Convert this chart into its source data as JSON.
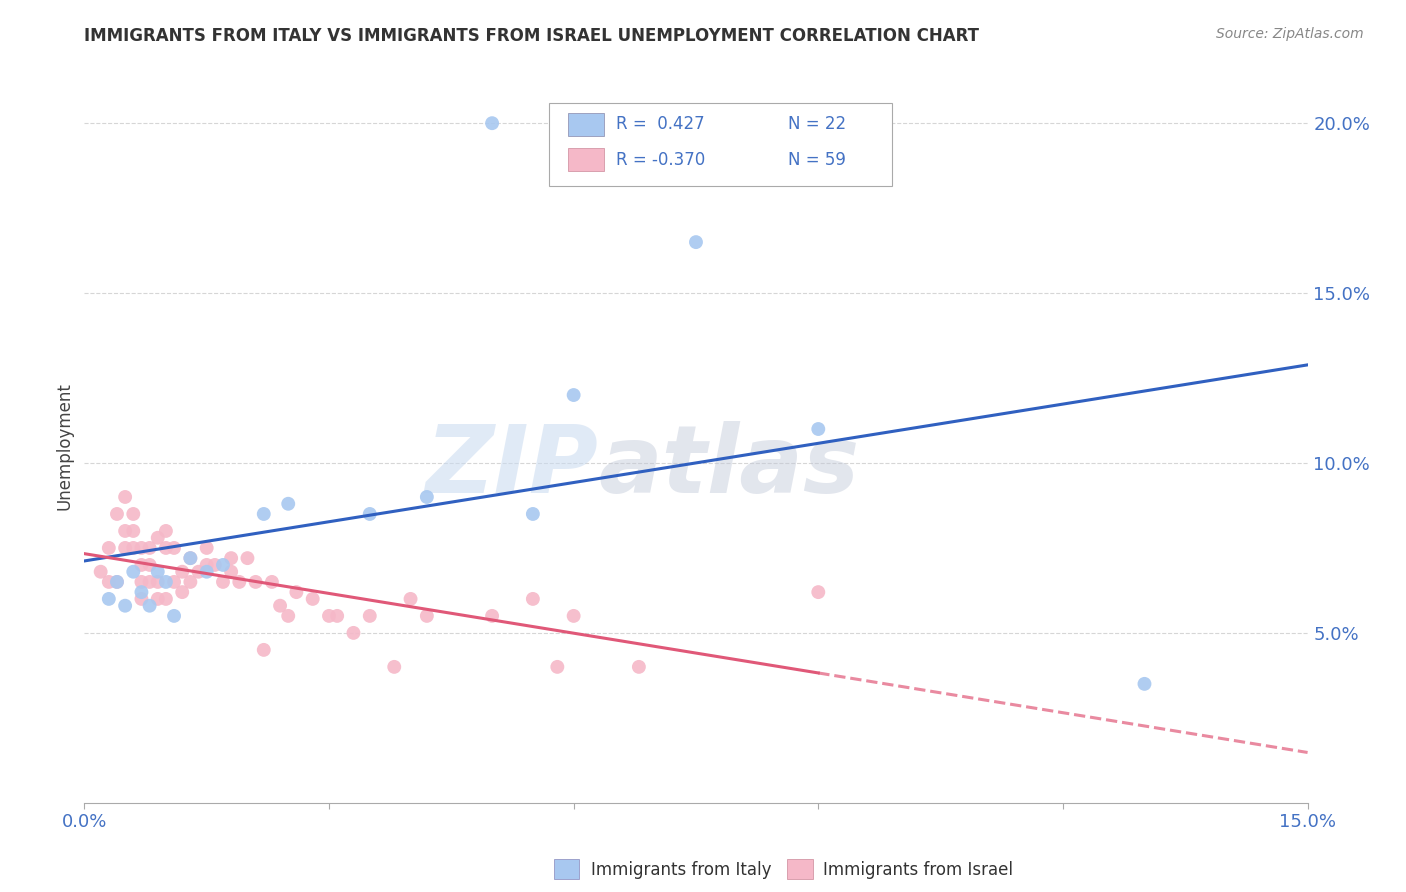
{
  "title": "IMMIGRANTS FROM ITALY VS IMMIGRANTS FROM ISRAEL UNEMPLOYMENT CORRELATION CHART",
  "source": "Source: ZipAtlas.com",
  "ylabel": "Unemployment",
  "x_min": 0.0,
  "x_max": 0.15,
  "y_min": 0.0,
  "y_max": 0.21,
  "yticks": [
    0.05,
    0.1,
    0.15,
    0.2
  ],
  "ytick_labels": [
    "5.0%",
    "10.0%",
    "15.0%",
    "20.0%"
  ],
  "xticks": [
    0.0,
    0.03,
    0.06,
    0.09,
    0.12,
    0.15
  ],
  "xtick_labels": [
    "0.0%",
    "",
    "",
    "",
    "",
    "15.0%"
  ],
  "legend_italy_r": "R =  0.427",
  "legend_italy_n": "N = 22",
  "legend_israel_r": "R = -0.370",
  "legend_israel_n": "N = 59",
  "italy_color": "#a8c8f0",
  "israel_color": "#f5b8c8",
  "italy_line_color": "#3060c0",
  "israel_line_color": "#e05878",
  "italy_x": [
    0.003,
    0.004,
    0.005,
    0.006,
    0.007,
    0.008,
    0.009,
    0.01,
    0.011,
    0.013,
    0.015,
    0.017,
    0.022,
    0.025,
    0.035,
    0.042,
    0.05,
    0.055,
    0.06,
    0.075,
    0.09,
    0.13
  ],
  "italy_y": [
    0.06,
    0.065,
    0.058,
    0.068,
    0.062,
    0.058,
    0.068,
    0.065,
    0.055,
    0.072,
    0.068,
    0.07,
    0.085,
    0.088,
    0.085,
    0.09,
    0.2,
    0.085,
    0.12,
    0.165,
    0.11,
    0.035
  ],
  "israel_x": [
    0.002,
    0.003,
    0.003,
    0.004,
    0.004,
    0.005,
    0.005,
    0.005,
    0.006,
    0.006,
    0.006,
    0.007,
    0.007,
    0.007,
    0.007,
    0.008,
    0.008,
    0.008,
    0.009,
    0.009,
    0.009,
    0.01,
    0.01,
    0.01,
    0.011,
    0.011,
    0.012,
    0.012,
    0.013,
    0.013,
    0.014,
    0.015,
    0.015,
    0.016,
    0.017,
    0.018,
    0.018,
    0.019,
    0.02,
    0.021,
    0.022,
    0.023,
    0.024,
    0.025,
    0.026,
    0.028,
    0.03,
    0.031,
    0.033,
    0.035,
    0.038,
    0.04,
    0.042,
    0.05,
    0.055,
    0.058,
    0.06,
    0.068,
    0.09
  ],
  "israel_y": [
    0.068,
    0.065,
    0.075,
    0.065,
    0.085,
    0.09,
    0.08,
    0.075,
    0.085,
    0.08,
    0.075,
    0.075,
    0.07,
    0.065,
    0.06,
    0.075,
    0.07,
    0.065,
    0.078,
    0.065,
    0.06,
    0.08,
    0.075,
    0.06,
    0.075,
    0.065,
    0.068,
    0.062,
    0.072,
    0.065,
    0.068,
    0.075,
    0.07,
    0.07,
    0.065,
    0.072,
    0.068,
    0.065,
    0.072,
    0.065,
    0.045,
    0.065,
    0.058,
    0.055,
    0.062,
    0.06,
    0.055,
    0.055,
    0.05,
    0.055,
    0.04,
    0.06,
    0.055,
    0.055,
    0.06,
    0.04,
    0.055,
    0.04,
    0.062
  ],
  "watermark_zip": "ZIP",
  "watermark_atlas": "atlas",
  "background_color": "#ffffff",
  "grid_color": "#cccccc"
}
